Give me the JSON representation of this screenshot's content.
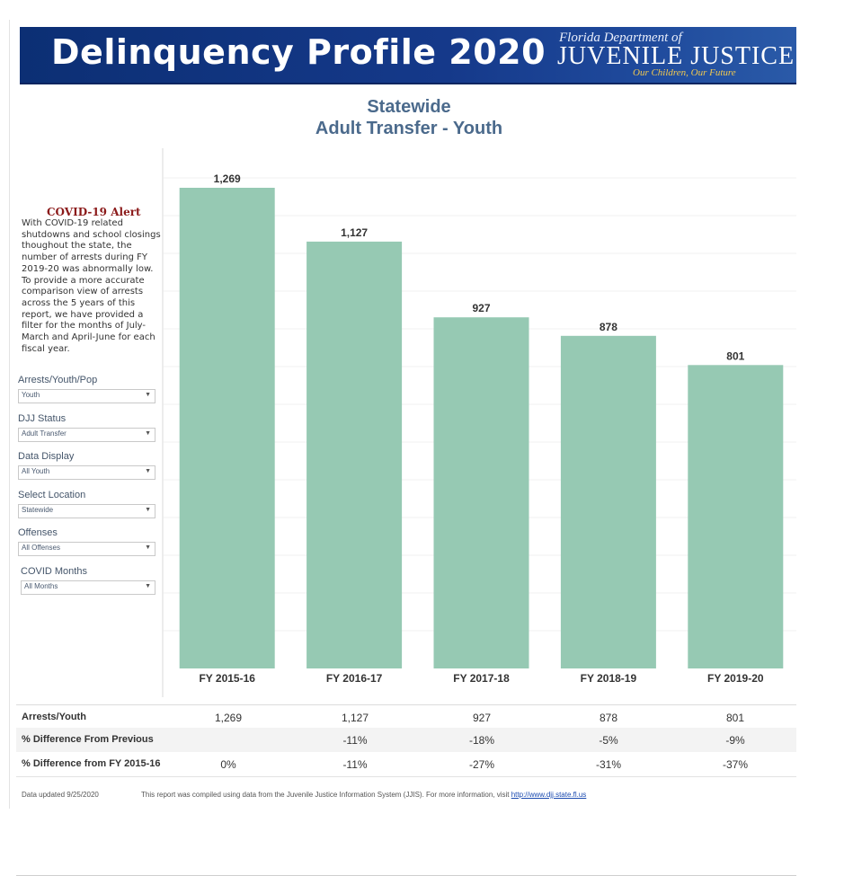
{
  "header": {
    "title": "Delinquency Profile 2020",
    "logo_top": "Florida Department of",
    "logo_main": "JUVENILE JUSTICE",
    "logo_tagline": "Our Children, Our Future"
  },
  "alert": {
    "title": "COVID-19 Alert",
    "body": "With COVID-19 related shutdowns and school closings thoughout the state, the number of arrests during FY 2019-20 was abnormally low. To provide a more accurate comparison view of arrests across the 5 years of this report, we have provided a filter for the  months of July-March and April-June for each fiscal year."
  },
  "filters": [
    {
      "label": "Arrests/Youth/Pop",
      "value": "Youth"
    },
    {
      "label": "DJJ Status",
      "value": "Adult Transfer"
    },
    {
      "label": "Data Display",
      "value": "All Youth"
    },
    {
      "label": "Select Location",
      "value": "Statewide"
    },
    {
      "label": "Offenses",
      "value": "All Offenses"
    },
    {
      "label": "COVID Months",
      "value": "All Months"
    }
  ],
  "chart_data": {
    "type": "bar",
    "title": "Statewide",
    "subtitle": "Adult Transfer - Youth",
    "categories": [
      "FY 2015-16",
      "FY 2016-17",
      "FY 2017-18",
      "FY 2018-19",
      "FY 2019-20"
    ],
    "values": [
      1269,
      1127,
      927,
      878,
      801
    ],
    "value_labels": [
      "1,269",
      "1,127",
      "927",
      "878",
      "801"
    ],
    "xlabel": "",
    "ylabel": "",
    "ylim": [
      0,
      1300
    ],
    "grid": true,
    "bar_color": "#96c9b3"
  },
  "table": {
    "rows": [
      {
        "label": "Arrests/Youth",
        "values": [
          "1,269",
          "1,127",
          "927",
          "878",
          "801"
        ]
      },
      {
        "label": "% Difference From Previous",
        "values": [
          "",
          "-11%",
          "-18%",
          "-5%",
          "-9%"
        ]
      },
      {
        "label": "% Difference from FY 2015-16",
        "values": [
          "0%",
          "-11%",
          "-27%",
          "-31%",
          "-37%"
        ]
      }
    ]
  },
  "footer": {
    "updated": "Data updated 9/25/2020",
    "note": "This report was compiled using data from the Juvenile Justice Information System (JJIS).  For more information, visit ",
    "link": "http://www.djj.state.fl.us"
  }
}
